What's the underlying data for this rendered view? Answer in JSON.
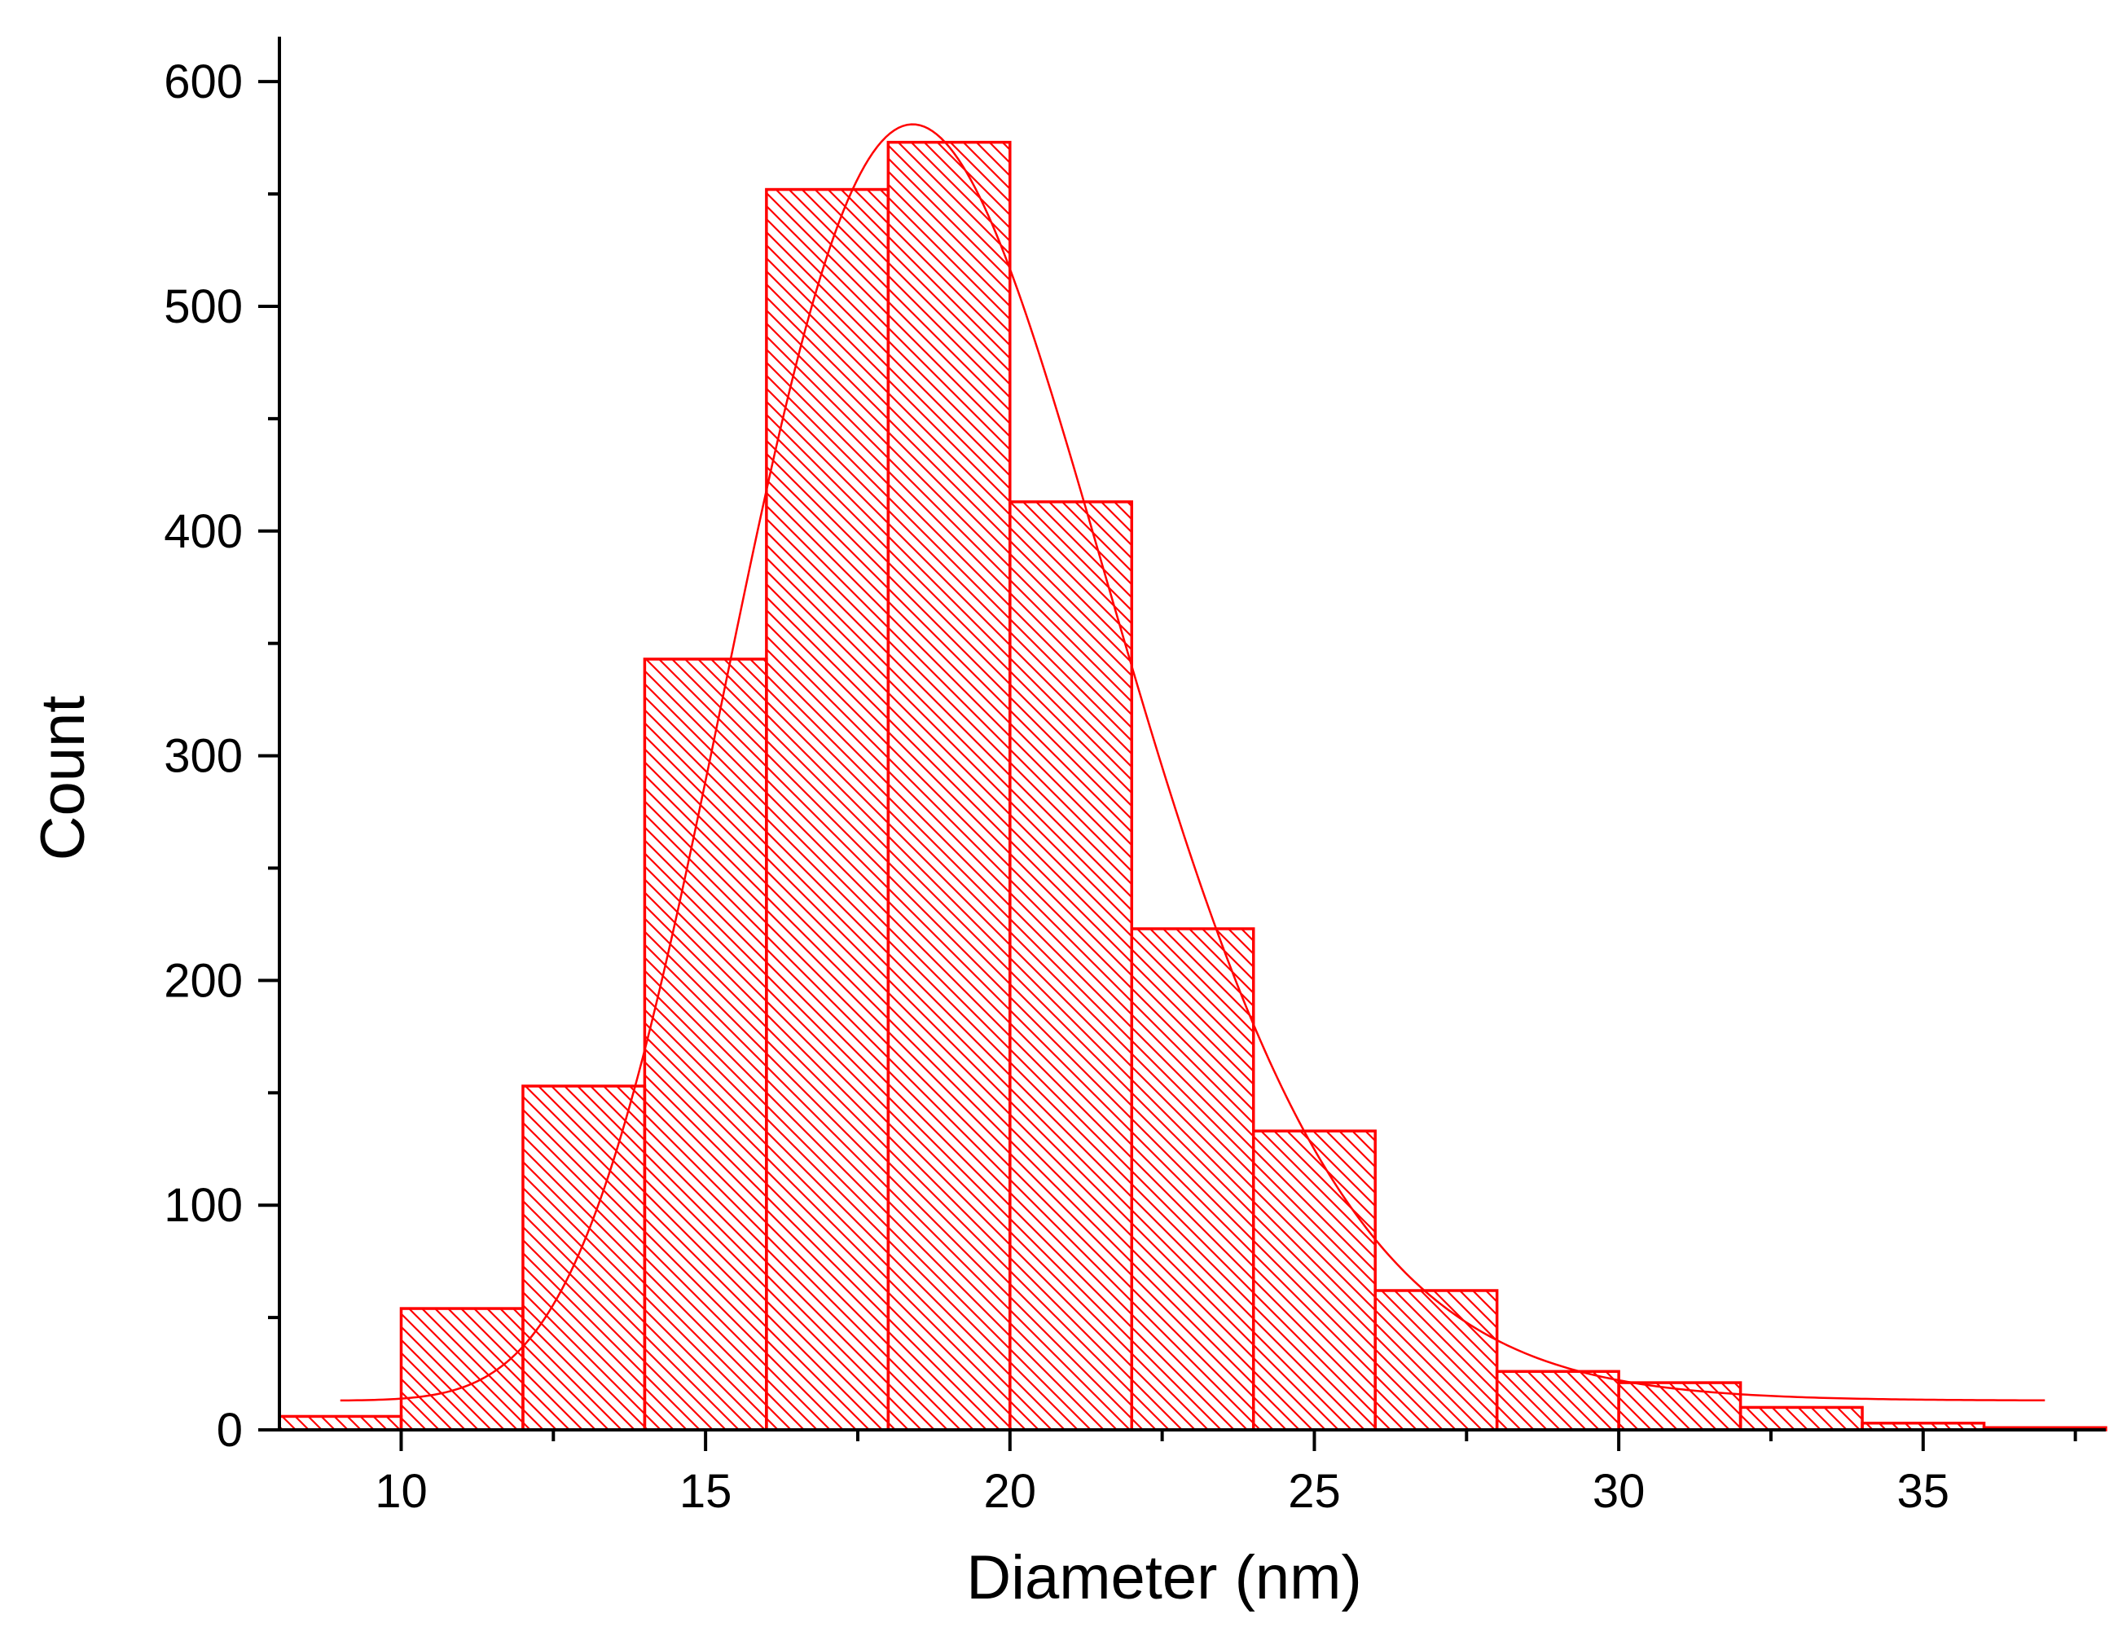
{
  "chart_data": {
    "type": "bar",
    "subtype": "histogram-with-fit",
    "xlabel": "Diameter (nm)",
    "ylabel": "Count",
    "xlim": [
      8,
      38
    ],
    "ylim": [
      0,
      620
    ],
    "x_ticks": [
      10,
      15,
      20,
      25,
      30,
      35
    ],
    "y_ticks": [
      0,
      100,
      200,
      300,
      400,
      500,
      600
    ],
    "bin_width": 2,
    "bins": [
      {
        "start": 8,
        "end": 10,
        "count": 6
      },
      {
        "start": 10,
        "end": 12,
        "count": 54
      },
      {
        "start": 12,
        "end": 14,
        "count": 153
      },
      {
        "start": 14,
        "end": 16,
        "count": 343
      },
      {
        "start": 16,
        "end": 18,
        "count": 552
      },
      {
        "start": 18,
        "end": 20,
        "count": 573
      },
      {
        "start": 20,
        "end": 22,
        "count": 413
      },
      {
        "start": 22,
        "end": 24,
        "count": 223
      },
      {
        "start": 24,
        "end": 26,
        "count": 133
      },
      {
        "start": 26,
        "end": 28,
        "count": 62
      },
      {
        "start": 28,
        "end": 30,
        "count": 26
      },
      {
        "start": 30,
        "end": 32,
        "count": 21
      },
      {
        "start": 32,
        "end": 34,
        "count": 10
      },
      {
        "start": 34,
        "end": 36,
        "count": 3
      },
      {
        "start": 36,
        "end": 38,
        "count": 1
      }
    ],
    "fit_curve": {
      "type": "lognormal",
      "x_range": [
        9,
        37
      ],
      "offset": 13,
      "peak_x": 18.4,
      "peak_y": 581,
      "sigma": 0.17
    },
    "grid": false,
    "legend": "none",
    "colors": {
      "bars": "#ff0000",
      "fit": "#ff0000",
      "axis": "#000000"
    }
  }
}
